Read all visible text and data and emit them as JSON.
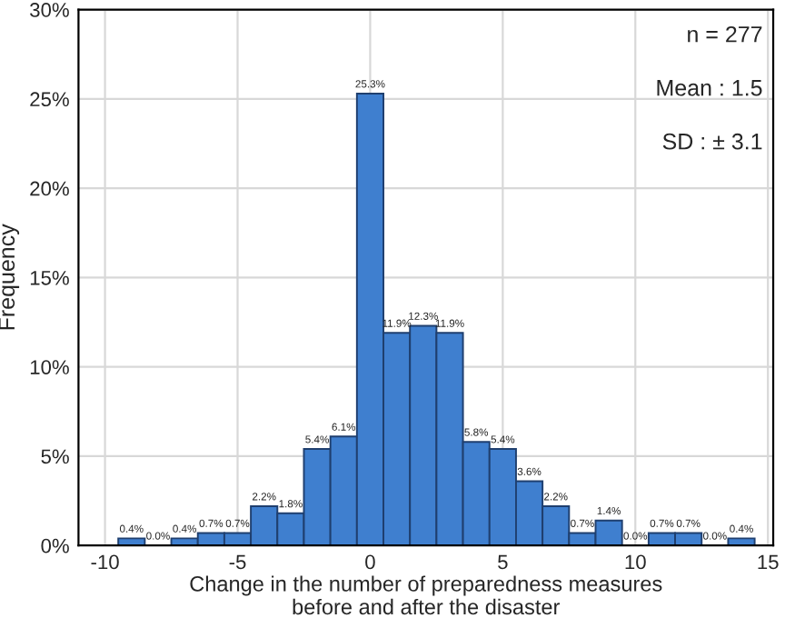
{
  "chart_data": {
    "type": "histogram",
    "xlabel": "Change in the number of preparedness measures\nbefore and after the disaster",
    "ylabel": "Frequency",
    "bins": [
      -9.5,
      -8.5,
      -7.5,
      -6.5,
      -5.5,
      -4.5,
      -3.5,
      -2.5,
      -1.5,
      -0.5,
      0.5,
      1.5,
      2.5,
      3.5,
      4.5,
      5.5,
      6.5,
      7.5,
      8.5,
      9.5,
      10.5,
      11.5,
      12.5,
      13.5,
      14.5
    ],
    "values": [
      0.4,
      0.0,
      0.4,
      0.7,
      0.7,
      2.2,
      1.8,
      5.4,
      6.1,
      25.3,
      11.9,
      12.3,
      11.9,
      5.8,
      5.4,
      3.6,
      2.2,
      0.7,
      1.4,
      0.0,
      0.7,
      0.7,
      0.0,
      0.4
    ],
    "value_labels": [
      "0.4%",
      "0.0%",
      "0.4%",
      "0.7%",
      "0.7%",
      "2.2%",
      "1.8%",
      "5.4%",
      "6.1%",
      "25.3%",
      "11.9%",
      "12.3%",
      "11.9%",
      "5.8%",
      "5.4%",
      "3.6%",
      "2.2%",
      "0.7%",
      "1.4%",
      "0.0%",
      "0.7%",
      "0.7%",
      "0.0%",
      "0.4%"
    ],
    "color": "#3f7fcf",
    "xlim": [
      -11,
      15.2
    ],
    "xticks": [
      -10,
      -5,
      0,
      5,
      10,
      15
    ],
    "ylim": [
      0,
      30
    ],
    "yticks": [
      {
        "value": 0,
        "label": "0%"
      },
      {
        "value": 5,
        "label": "5%"
      },
      {
        "value": 10,
        "label": "10%"
      },
      {
        "value": 15,
        "label": "15%"
      },
      {
        "value": 20,
        "label": "20%"
      },
      {
        "value": 25,
        "label": "25%"
      },
      {
        "value": 30,
        "label": "30%"
      }
    ],
    "grid": true,
    "annotations": [
      "n = 277",
      "Mean : 1.5",
      "SD : ± 3.1"
    ]
  }
}
